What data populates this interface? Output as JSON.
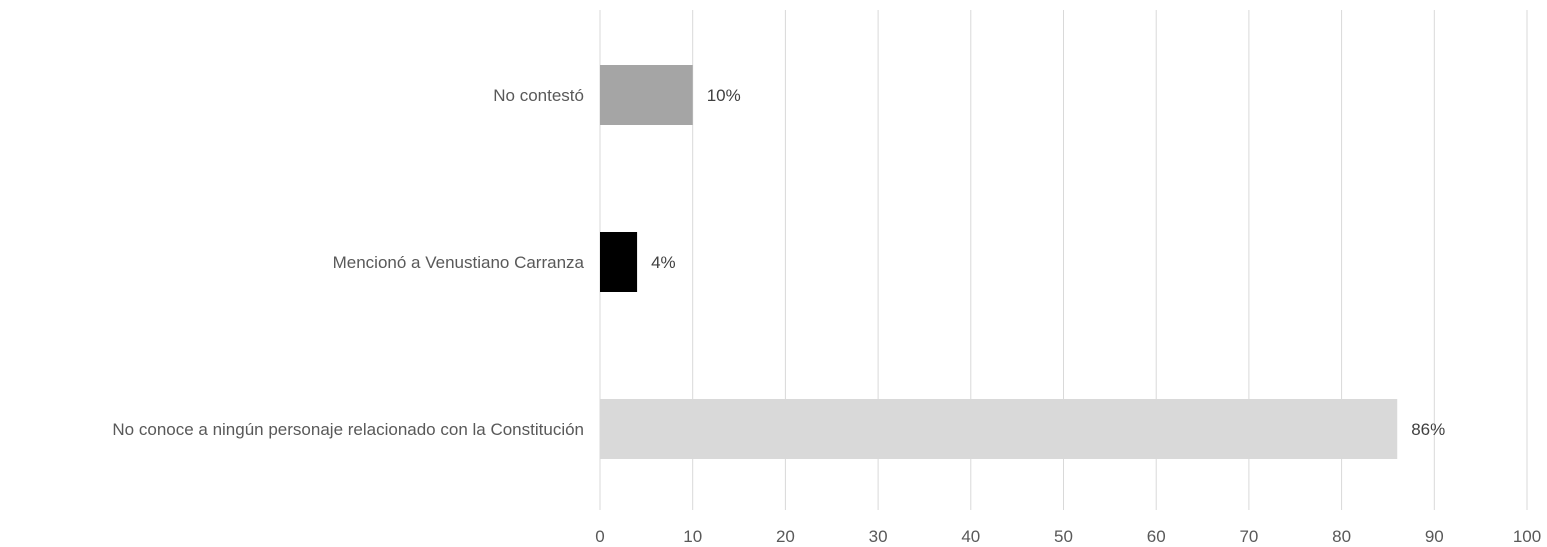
{
  "chart_data": {
    "type": "bar",
    "orientation": "horizontal",
    "categories": [
      "No contestó",
      "Mencionó a Venustiano Carranza",
      "No conoce a ningún personaje relacionado con la Constitución"
    ],
    "values": [
      10,
      4,
      86
    ],
    "data_labels": [
      "10%",
      "4%",
      "86%"
    ],
    "bar_colors": [
      "#a5a5a5",
      "#000000",
      "#d9d9d9"
    ],
    "xlim": [
      0,
      100
    ],
    "x_ticks": [
      0,
      10,
      20,
      30,
      40,
      50,
      60,
      70,
      80,
      90,
      100
    ],
    "x_tick_labels": [
      "0",
      "10",
      "20",
      "30",
      "40",
      "50",
      "60",
      "70",
      "80",
      "90",
      "100"
    ],
    "grid": true,
    "legend": "none",
    "title": "",
    "xlabel": "",
    "ylabel": ""
  }
}
